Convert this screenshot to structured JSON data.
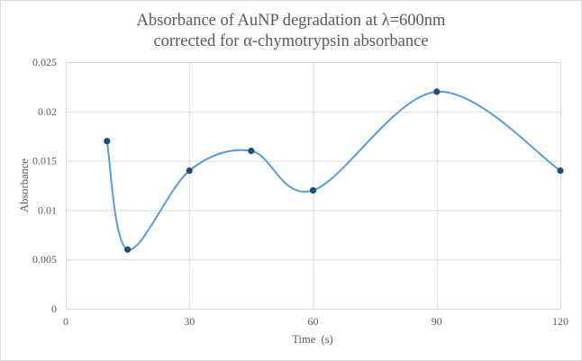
{
  "chart_data": {
    "type": "line",
    "smooth": true,
    "title": [
      "Absorbance of AuNP degradation at λ=600nm",
      "corrected for α-chymotrypsin absorbance"
    ],
    "xlabel": "Time  (s)",
    "ylabel": "Absorbance",
    "xlim": [
      0,
      120
    ],
    "ylim": [
      0,
      0.025
    ],
    "x_ticks": [
      0,
      30,
      60,
      90,
      120
    ],
    "x_tick_labels": [
      "0",
      "30",
      "60",
      "90",
      "120"
    ],
    "y_ticks": [
      0,
      0.005,
      0.01,
      0.015,
      0.02,
      0.025
    ],
    "y_tick_labels": [
      "0",
      "0.005",
      "0.01",
      "0.015",
      "0.02",
      "0.025"
    ],
    "grid": true,
    "series": [
      {
        "name": "Absorbance",
        "x": [
          10,
          15,
          30,
          45,
          60,
          90,
          120
        ],
        "y": [
          0.017,
          0.006,
          0.014,
          0.016,
          0.012,
          0.022,
          0.014
        ],
        "line_color": "#5b9bd5",
        "marker_color": "#1f4e79"
      }
    ],
    "grid_color": "#d9d9d9"
  }
}
